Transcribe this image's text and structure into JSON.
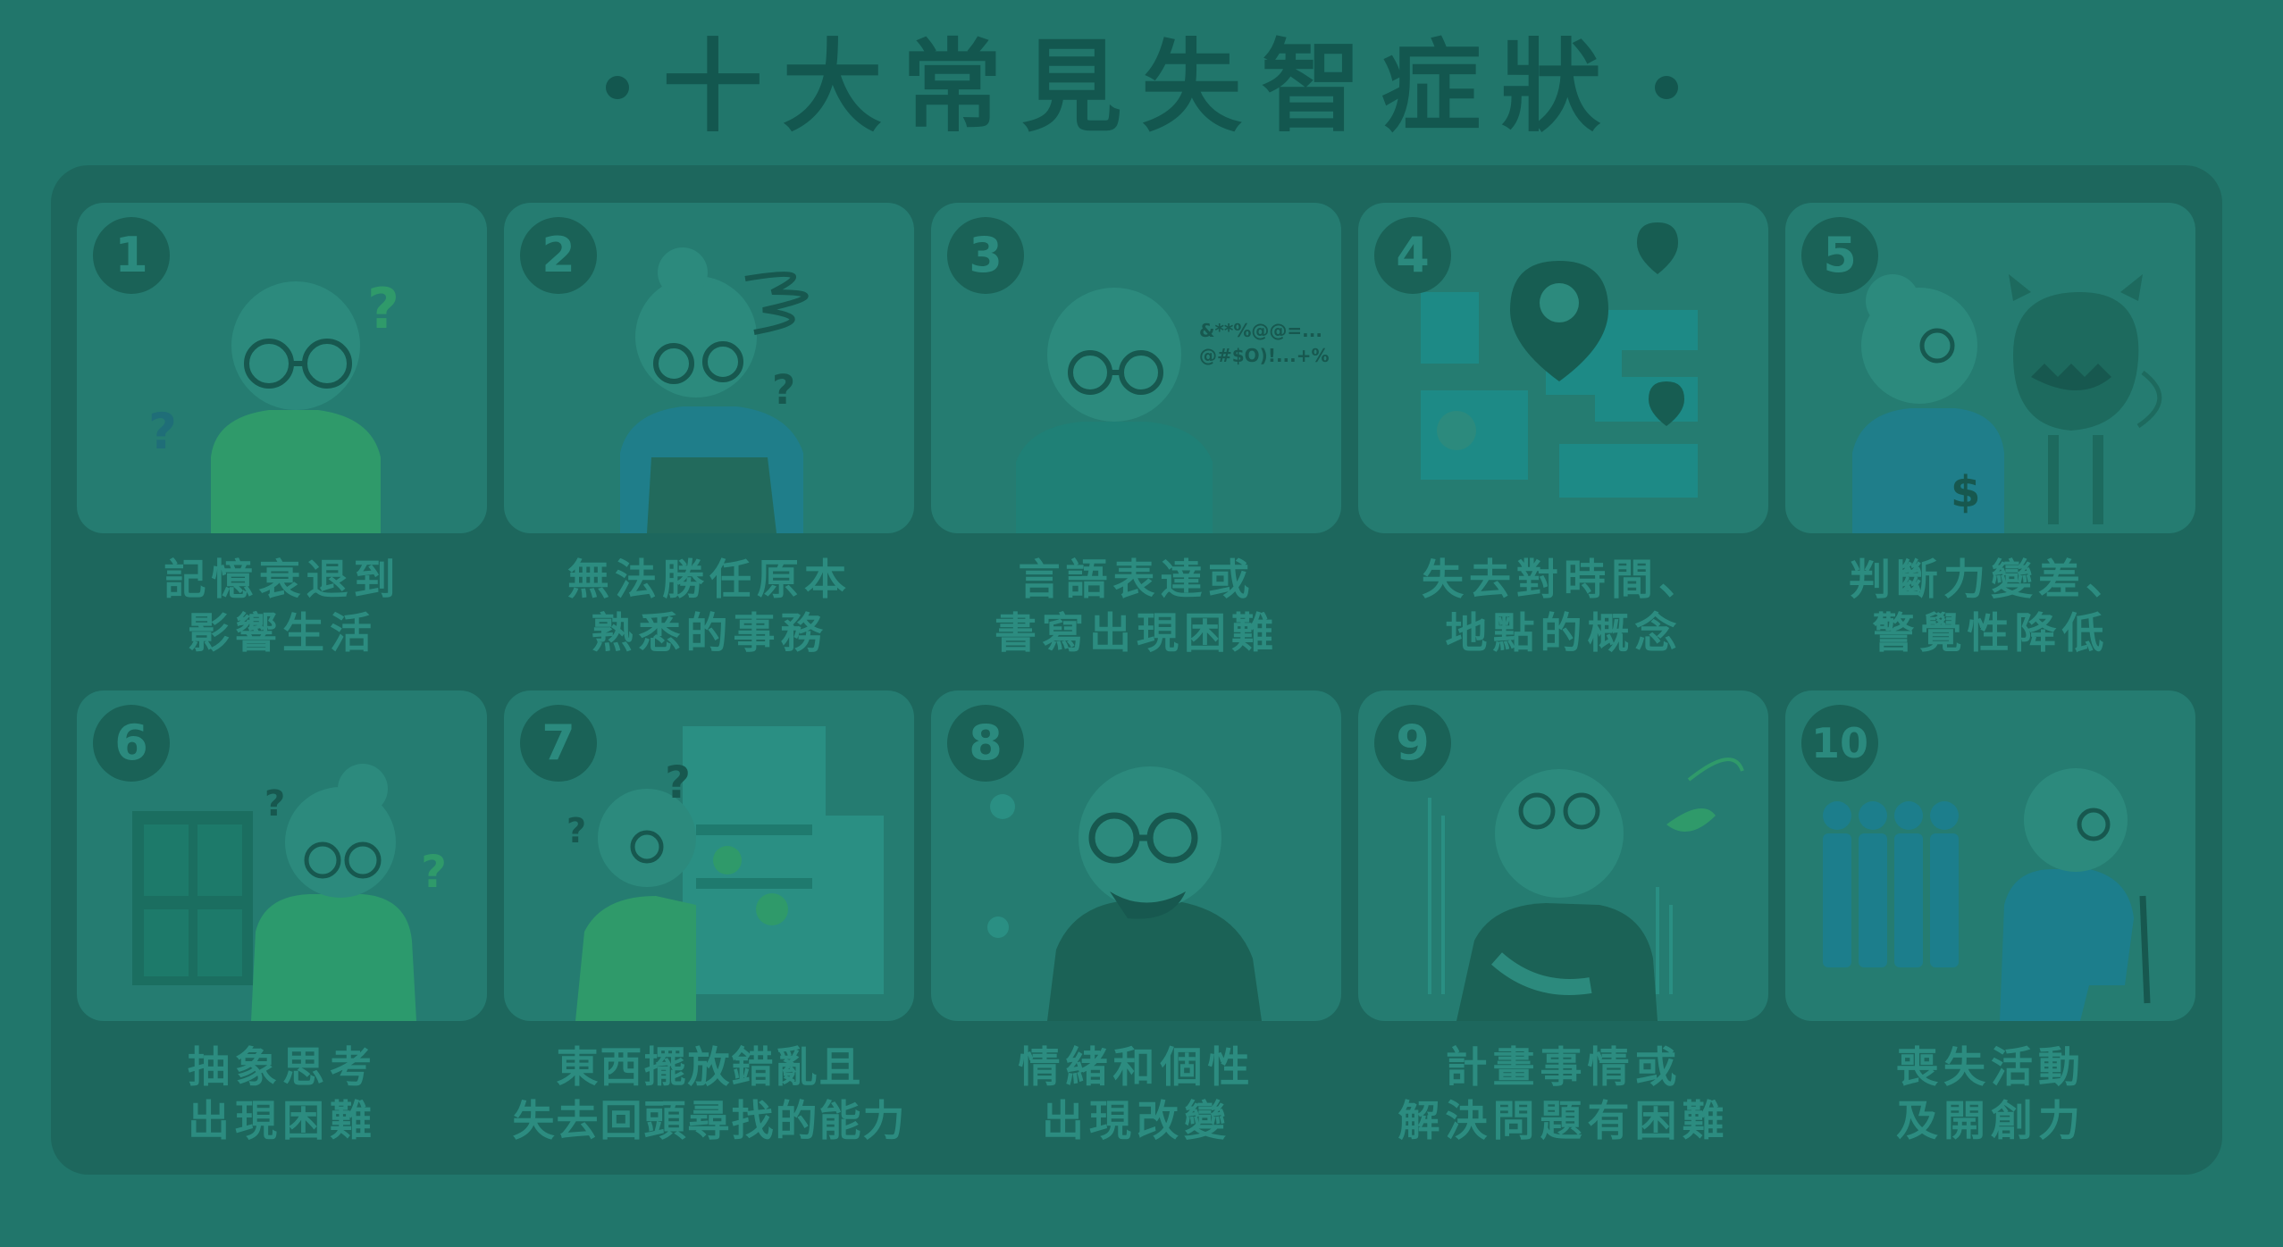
{
  "title": "十大常見失智症狀",
  "icons": [
    "elderly-person-illustration",
    "map-pin-icon",
    "dollar-icon",
    "door-icon",
    "refrigerator-icon",
    "walking-cane-icon"
  ],
  "colors": {
    "background": "#21766b",
    "board": "#1d675d",
    "card": "#257c71",
    "text_muted": "#2c8c80",
    "title": "#13574f"
  },
  "symptoms": [
    {
      "number": "1",
      "line1": "記憶衰退到",
      "line2": "影響生活"
    },
    {
      "number": "2",
      "line1": "無法勝任原本",
      "line2": "熟悉的事務"
    },
    {
      "number": "3",
      "line1": "言語表達或",
      "line2": "書寫出現困難",
      "speech_line1": "&**%@@=...",
      "speech_line2": "@#$O)!...+%"
    },
    {
      "number": "4",
      "line1": "失去對時間、",
      "line2": "地點的概念"
    },
    {
      "number": "5",
      "line1": "判斷力變差、",
      "line2": "警覺性降低"
    },
    {
      "number": "6",
      "line1": "抽象思考",
      "line2": "出現困難"
    },
    {
      "number": "7",
      "line1": "東西擺放錯亂且",
      "line2": "失去回頭尋找的能力"
    },
    {
      "number": "8",
      "line1": "情緒和個性",
      "line2": "出現改變"
    },
    {
      "number": "9",
      "line1": "計畫事情或",
      "line2": "解決問題有困難"
    },
    {
      "number": "10",
      "line1": "喪失活動",
      "line2": "及開創力"
    }
  ]
}
